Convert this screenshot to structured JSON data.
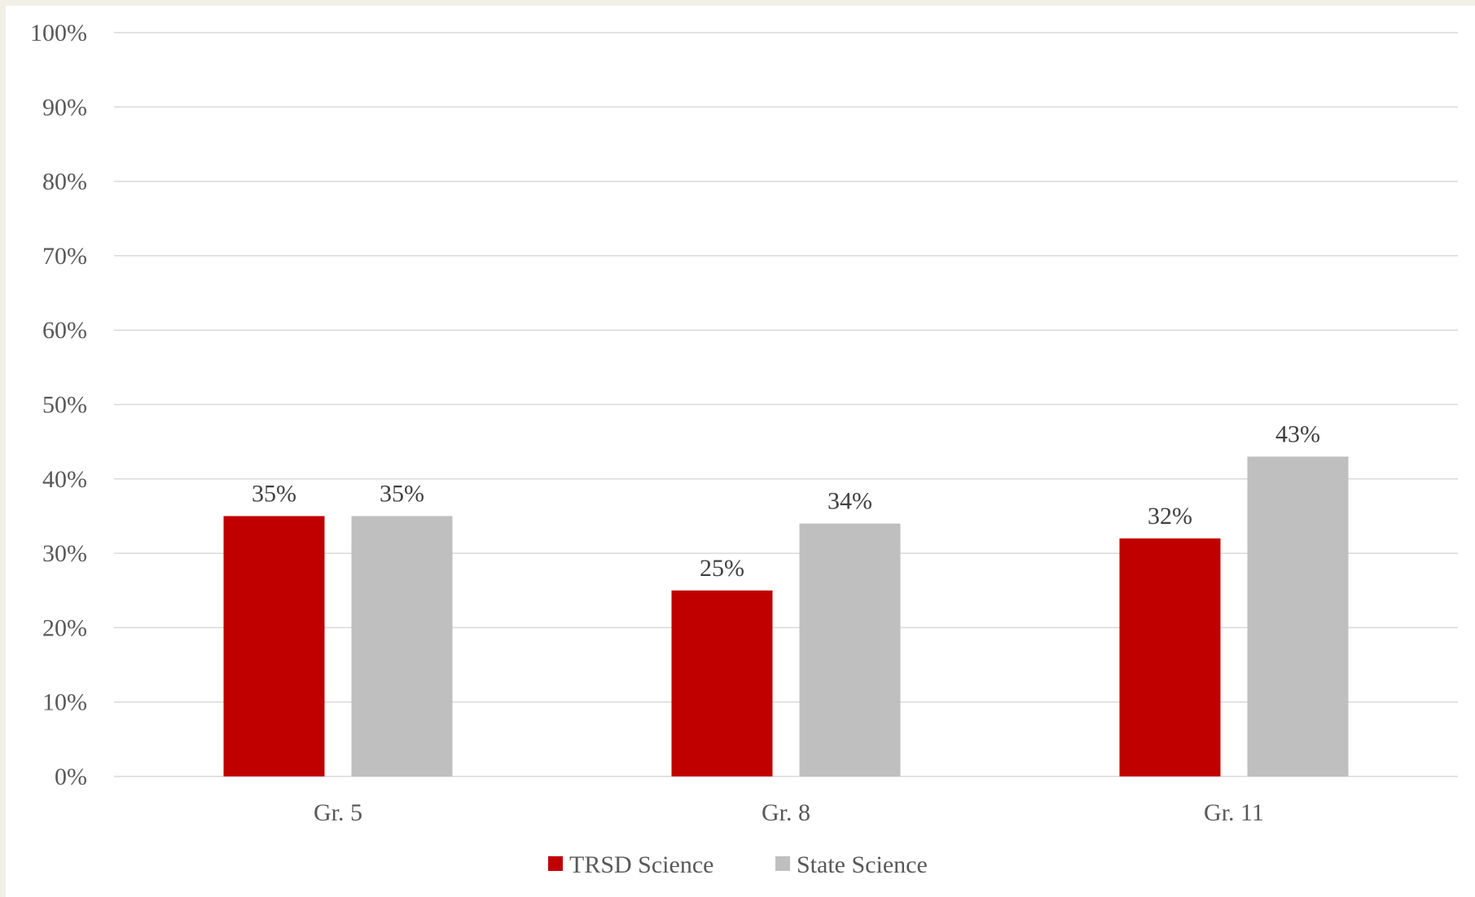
{
  "chart_data": {
    "type": "bar",
    "categories": [
      "Gr. 5",
      "Gr. 8",
      "Gr. 11"
    ],
    "series": [
      {
        "name": "TRSD Science",
        "values": [
          35,
          25,
          32
        ],
        "color": "#c00000"
      },
      {
        "name": "State Science",
        "values": [
          35,
          34,
          43
        ],
        "color": "#bfbfbf"
      }
    ],
    "ylim": [
      0,
      100
    ],
    "yticks": [
      0,
      10,
      20,
      30,
      40,
      50,
      60,
      70,
      80,
      90,
      100
    ],
    "ytick_labels": [
      "0%",
      "10%",
      "20%",
      "30%",
      "40%",
      "50%",
      "60%",
      "70%",
      "80%",
      "90%",
      "100%"
    ],
    "data_labels": [
      [
        "35%",
        "25%",
        "32%"
      ],
      [
        "35%",
        "34%",
        "43%"
      ]
    ],
    "grid": true,
    "legend_position": "bottom"
  }
}
